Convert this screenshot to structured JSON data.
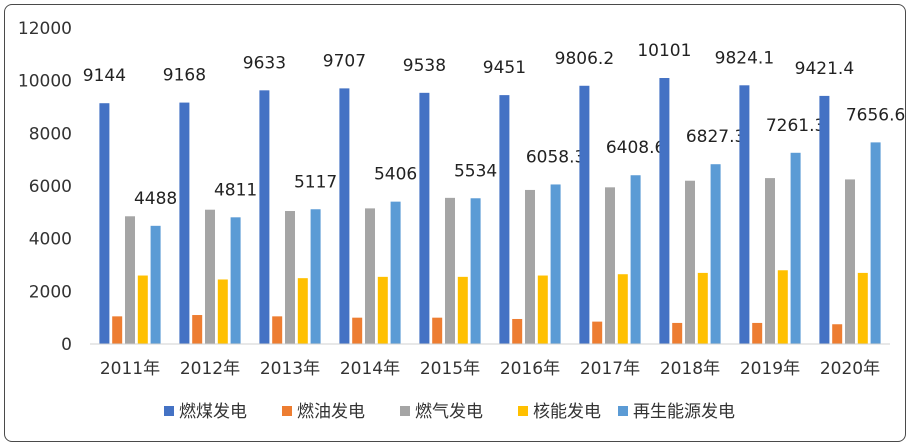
{
  "chart_data": {
    "type": "bar",
    "title": "",
    "xlabel": "",
    "ylabel": "",
    "ylim": [
      0,
      12000
    ],
    "yticks": [
      0,
      2000,
      4000,
      6000,
      8000,
      10000,
      12000
    ],
    "categories": [
      "2011年",
      "2012年",
      "2013年",
      "2014年",
      "2015年",
      "2016年",
      "2017年",
      "2018年",
      "2019年",
      "2020年"
    ],
    "series": [
      {
        "name": "燃煤发电",
        "color": "#4472C4",
        "values": [
          9144,
          9168,
          9633,
          9707,
          9538,
          9451,
          9806.2,
          10101,
          9824.1,
          9421.4
        ],
        "labels": [
          "9144",
          "9168",
          "9633",
          "9707",
          "9538",
          "9451",
          "9806.2",
          "10101",
          "9824.1",
          "9421.4"
        ]
      },
      {
        "name": "燃油发电",
        "color": "#ED7D31",
        "values": [
          1050,
          1100,
          1050,
          1000,
          1000,
          950,
          850,
          800,
          800,
          750
        ]
      },
      {
        "name": "燃气发电",
        "color": "#A5A5A5",
        "values": [
          4850,
          5100,
          5050,
          5150,
          5550,
          5850,
          5950,
          6200,
          6300,
          6250
        ]
      },
      {
        "name": "核能发电",
        "color": "#FFC000",
        "values": [
          2600,
          2450,
          2500,
          2550,
          2550,
          2600,
          2650,
          2700,
          2800,
          2700
        ]
      },
      {
        "name": "再生能源发电",
        "color": "#5B9BD5",
        "values": [
          4488,
          4811,
          5117,
          5406,
          5534,
          6058.3,
          6408.6,
          6827.3,
          7261.3,
          7656.6
        ],
        "labels": [
          "4488",
          "4811",
          "5117",
          "5406",
          "5534",
          "6058.3",
          "6408.6",
          "6827.3",
          "7261.3",
          "7656.6"
        ]
      }
    ],
    "grid": false,
    "legend_position": "bottom"
  }
}
